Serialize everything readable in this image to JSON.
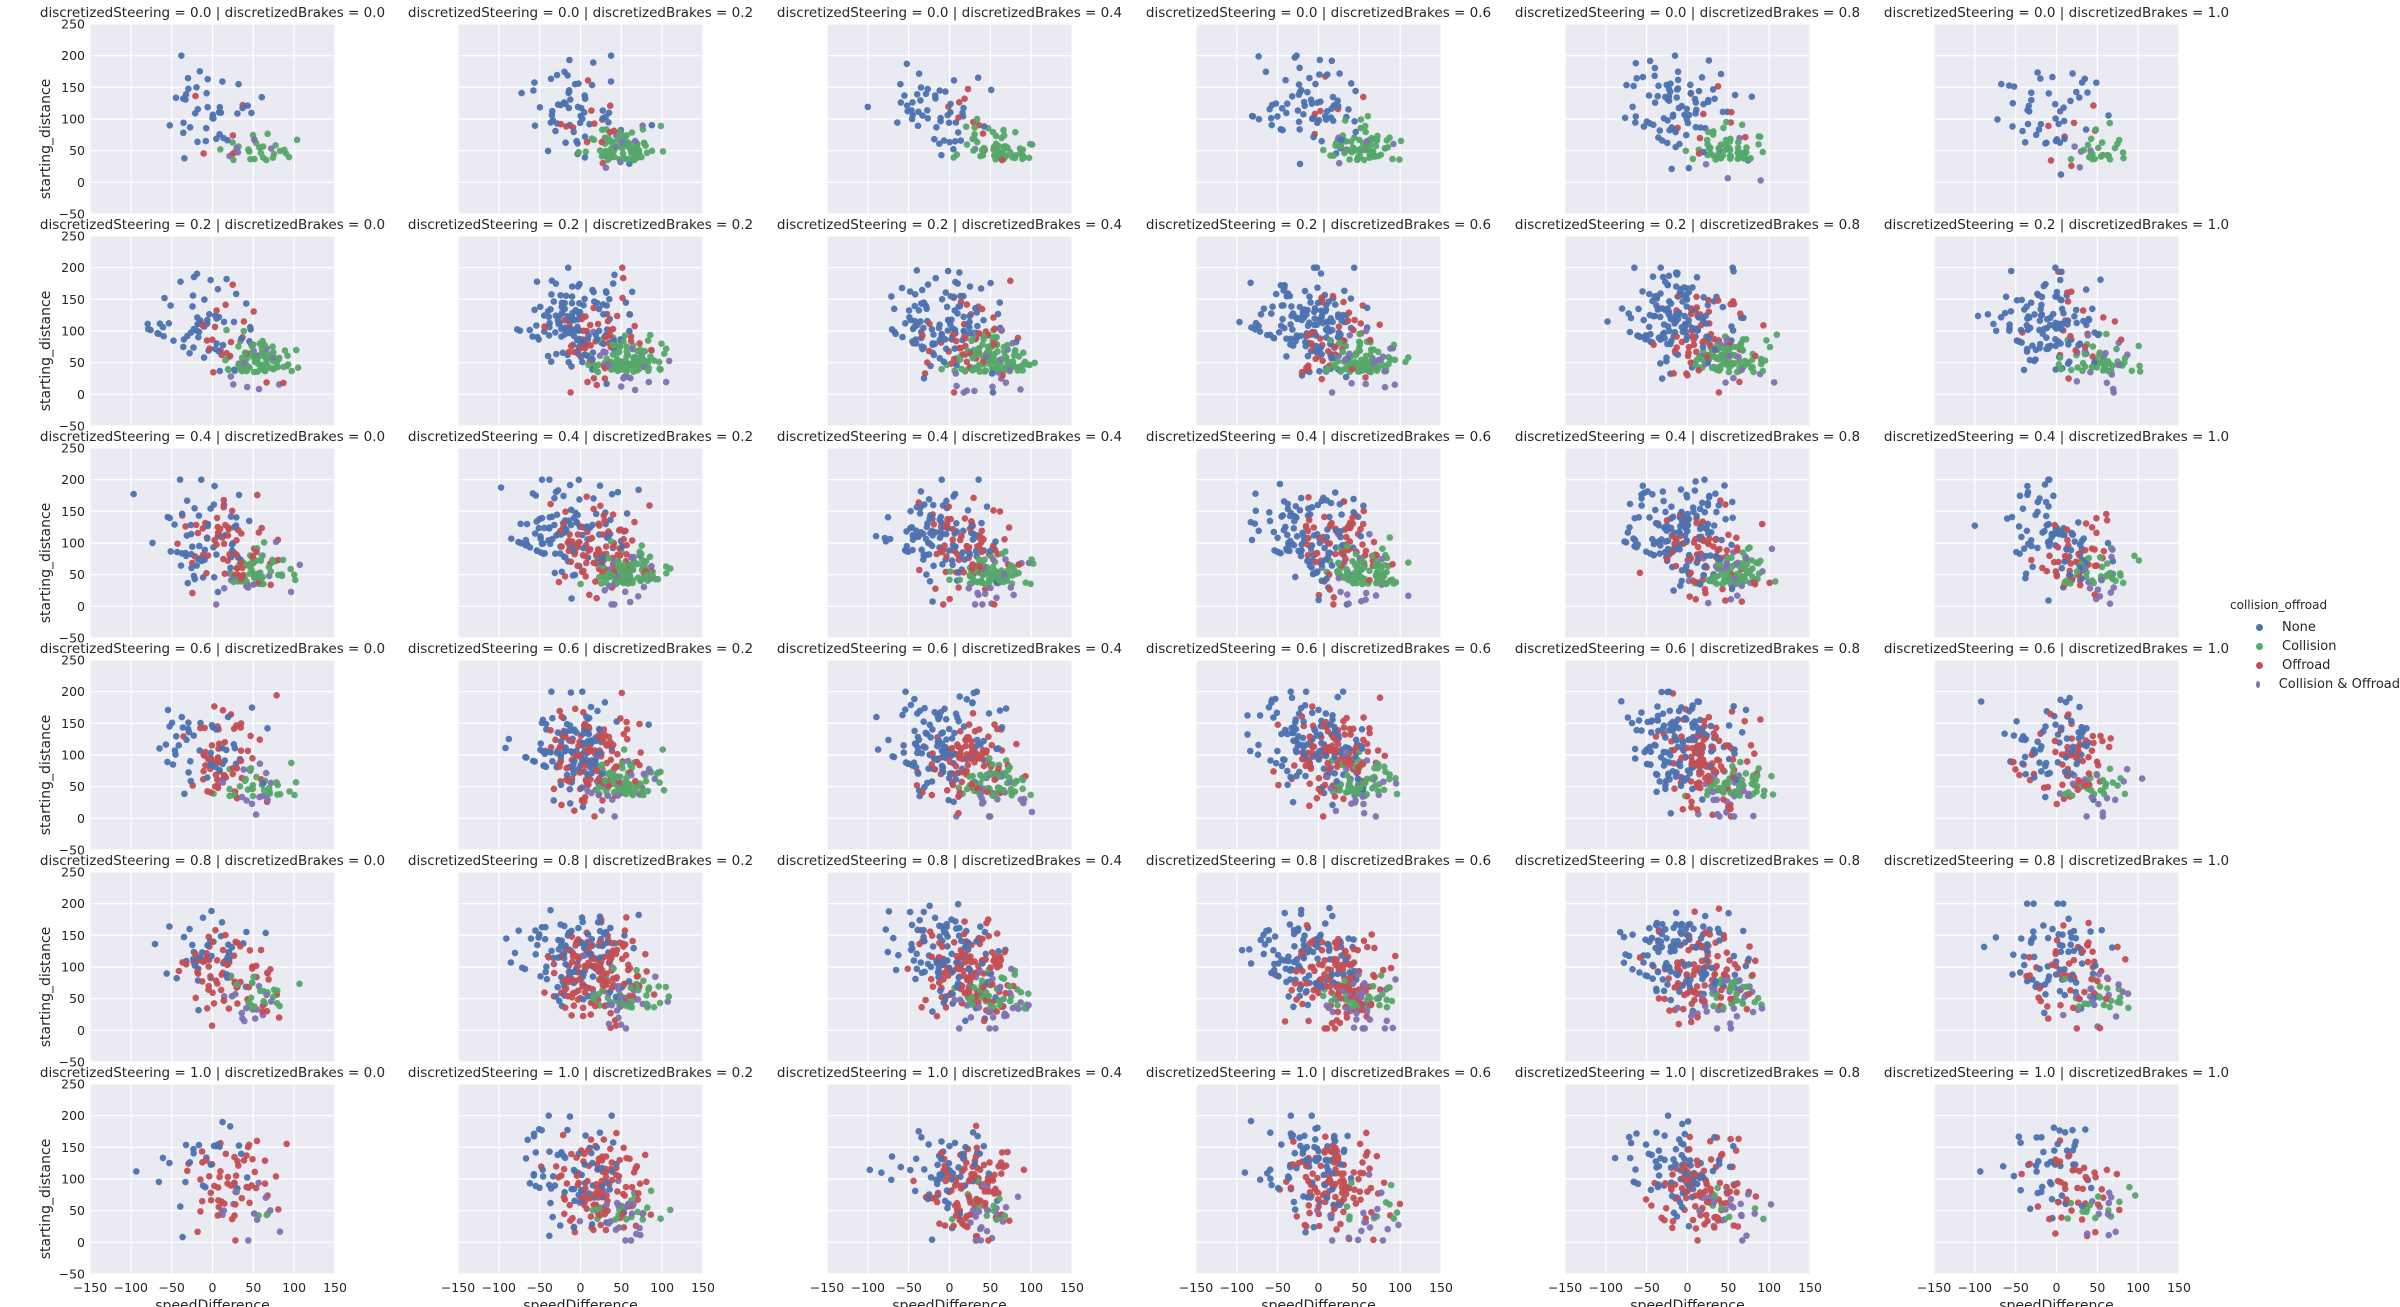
{
  "chart_data": {
    "type": "scatter",
    "row_var": "discretizedSteering",
    "col_var": "discretizedBrakes",
    "row_values": [
      "0.0",
      "0.2",
      "0.4",
      "0.6",
      "0.8",
      "1.0"
    ],
    "col_values": [
      "0.0",
      "0.2",
      "0.4",
      "0.6",
      "0.8",
      "1.0"
    ],
    "xlabel": "speedDifference",
    "ylabel": "starting_distance",
    "xlim": [
      -150,
      150
    ],
    "ylim": [
      -50,
      250
    ],
    "xticks": [
      "−150",
      "−100",
      "−50",
      "0",
      "50",
      "100",
      "150"
    ],
    "yticks": [
      "−50",
      "0",
      "50",
      "100",
      "150",
      "200",
      "250"
    ],
    "grid": true,
    "legend_placement": "right",
    "legend": {
      "title": "collision_offroad",
      "entries": [
        {
          "label": "None",
          "color": "#4c72b0"
        },
        {
          "label": "Collision",
          "color": "#55a868"
        },
        {
          "label": "Offroad",
          "color": "#c44e52"
        },
        {
          "label": "Collision & Offroad",
          "color": "#8172b2"
        }
      ]
    },
    "panels": [
      {
        "row": 0,
        "col": 0,
        "counts": {
          "None": 30,
          "Collision": 35,
          "Offroad": 6,
          "Collision & Offroad": 4
        },
        "x_range": [
          -80,
          100
        ],
        "y_range": [
          5,
          185
        ]
      },
      {
        "row": 0,
        "col": 5,
        "counts": {
          "None": 50,
          "Collision": 28,
          "Offroad": 2,
          "Collision & Offroad": 2
        },
        "x_range": [
          -70,
          95
        ],
        "y_range": [
          5,
          195
        ]
      }
    ]
  },
  "panel_title_template": "{row_var} = {row_value} | {col_var} = {col_value}",
  "colors": {
    "panel_bg": "#eaeaf2",
    "grid": "#ffffff",
    "text": "#262626"
  }
}
